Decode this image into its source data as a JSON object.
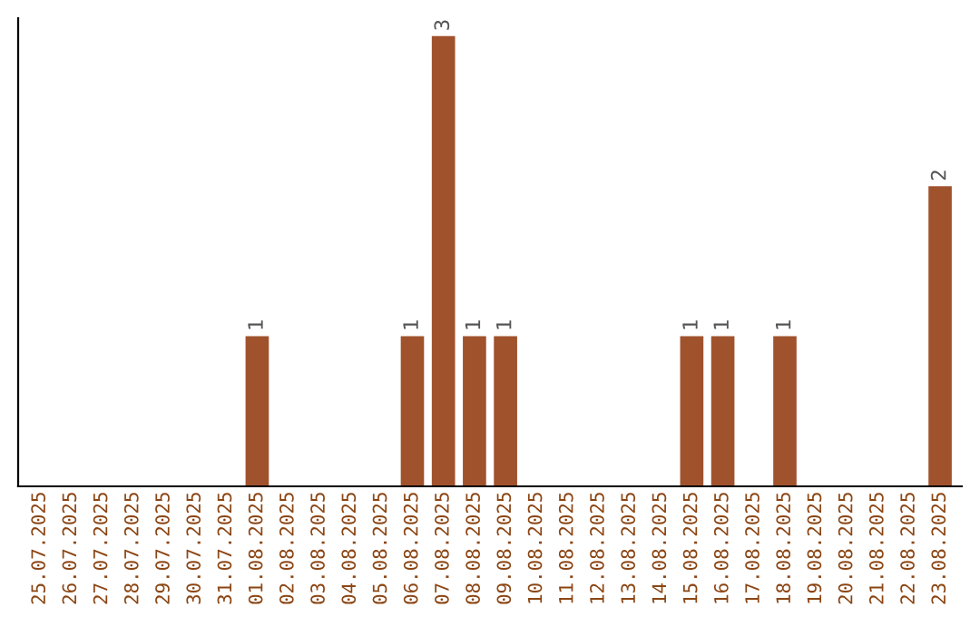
{
  "chart_data": {
    "type": "bar",
    "categories": [
      "25.07.2025",
      "26.07.2025",
      "27.07.2025",
      "28.07.2025",
      "29.07.2025",
      "30.07.2025",
      "31.07.2025",
      "01.08.2025",
      "02.08.2025",
      "03.08.2025",
      "04.08.2025",
      "05.08.2025",
      "06.08.2025",
      "07.08.2025",
      "08.08.2025",
      "09.08.2025",
      "10.08.2025",
      "11.08.2025",
      "12.08.2025",
      "13.08.2025",
      "14.08.2025",
      "15.08.2025",
      "16.08.2025",
      "17.08.2025",
      "18.08.2025",
      "19.08.2025",
      "20.08.2025",
      "21.08.2025",
      "22.08.2025",
      "23.08.2025"
    ],
    "values": [
      0,
      0,
      0,
      0,
      0,
      0,
      0,
      1,
      0,
      0,
      0,
      0,
      1,
      3,
      1,
      1,
      0,
      0,
      0,
      0,
      0,
      1,
      1,
      0,
      1,
      0,
      0,
      0,
      0,
      2
    ],
    "value_labels": [
      null,
      null,
      null,
      null,
      null,
      null,
      null,
      "1",
      null,
      null,
      null,
      null,
      "1",
      "3",
      "1",
      "1",
      null,
      null,
      null,
      null,
      null,
      "1",
      "1",
      null,
      "1",
      null,
      null,
      null,
      null,
      "2"
    ],
    "color": "#a0522d",
    "grid": false,
    "legend": false
  }
}
